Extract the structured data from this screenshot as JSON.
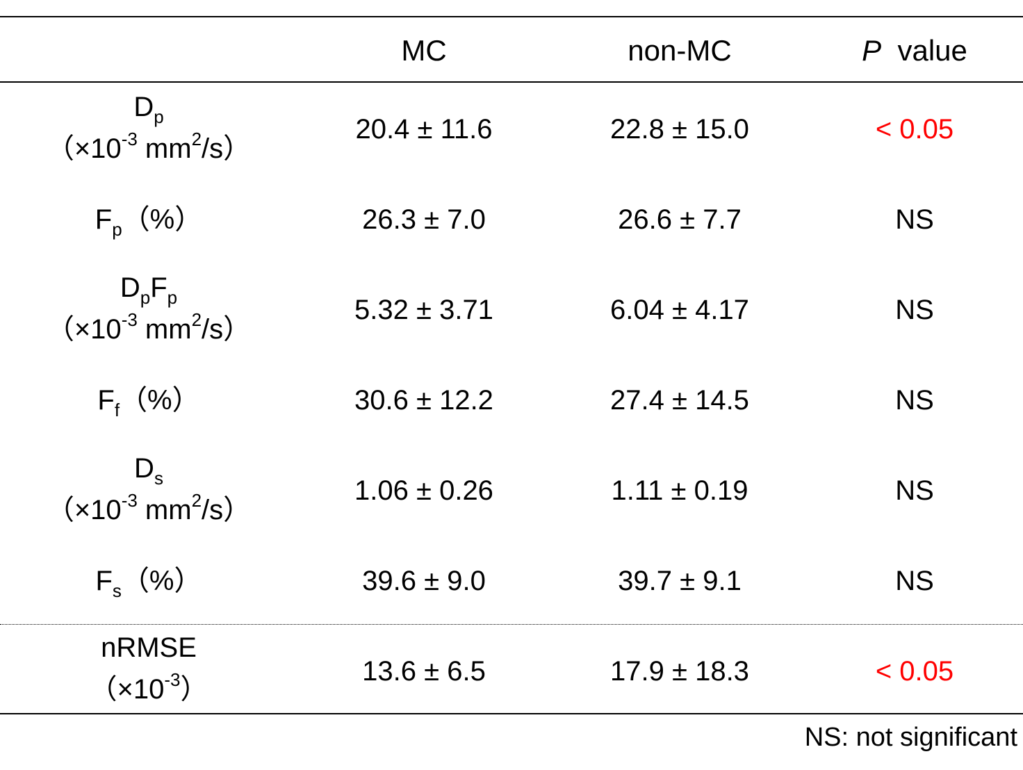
{
  "header": {
    "col_mc": "MC",
    "col_non_mc": "non-MC",
    "col_p_italic": "P",
    "col_p_rest": "value"
  },
  "rows": [
    {
      "label_main": "D",
      "label_sub": "p",
      "label_unit_open": "（×10",
      "label_unit_exp": "-3",
      "label_unit_mid": " mm",
      "label_unit_exp2": "2",
      "label_unit_close": "/s）",
      "mc": "20.4 ± 11.6",
      "non_mc": "22.8 ± 15.0",
      "p": "< 0.05"
    },
    {
      "label_main": "F",
      "label_sub": "p",
      "label_suffix": "（%）",
      "mc": "26.3 ± 7.0",
      "non_mc": "26.6 ± 7.7",
      "p": "NS"
    },
    {
      "label_main": "D",
      "label_sub": "p",
      "label_main2": "F",
      "label_sub2": "p",
      "label_unit_open": "（×10",
      "label_unit_exp": "-3",
      "label_unit_mid": " mm",
      "label_unit_exp2": "2",
      "label_unit_close": "/s）",
      "mc": "5.32 ± 3.71",
      "non_mc": "6.04 ± 4.17",
      "p": "NS"
    },
    {
      "label_main": "F",
      "label_sub": "f",
      "label_suffix": "（%）",
      "mc": "30.6 ± 12.2",
      "non_mc": "27.4 ± 14.5",
      "p": "NS"
    },
    {
      "label_main": "D",
      "label_sub": "s",
      "label_unit_open": "（×10",
      "label_unit_exp": "-3",
      "label_unit_mid": " mm",
      "label_unit_exp2": "2",
      "label_unit_close": "/s）",
      "mc": "1.06 ± 0.26",
      "non_mc": "1.11 ± 0.19",
      "p": "NS"
    },
    {
      "label_main": "F",
      "label_sub": "s",
      "label_suffix": "（%）",
      "mc": "39.6 ± 9.0",
      "non_mc": "39.7 ± 9.1",
      "p": "NS"
    },
    {
      "label_main": "nRMSE",
      "label_unit_open": "（×10",
      "label_unit_exp": "-3",
      "label_unit_close": "）",
      "mc": "13.6 ± 6.5",
      "non_mc": "17.9 ± 18.3",
      "p": "< 0.05"
    }
  ],
  "footnote": "NS: not significant",
  "colors": {
    "significant": "#ff0000",
    "text": "#000000"
  }
}
